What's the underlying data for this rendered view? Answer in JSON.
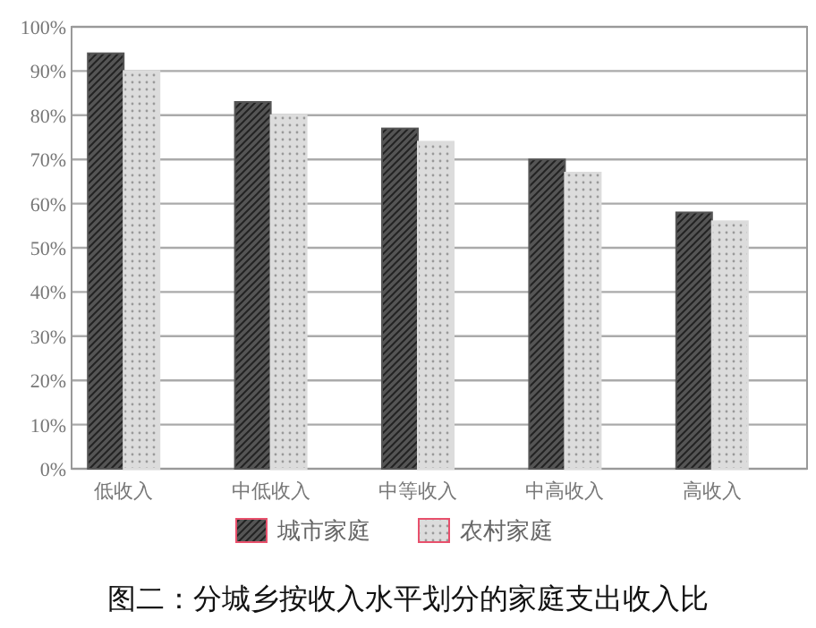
{
  "chart_data": {
    "type": "bar",
    "title": "图二：分城乡按收入水平划分的家庭支出收入比",
    "categories": [
      "低收入",
      "中低收入",
      "中等收入",
      "中高收入",
      "高收入"
    ],
    "series": [
      {
        "name": "城市家庭",
        "color": "#555555",
        "values": [
          94,
          83,
          77,
          70,
          58
        ]
      },
      {
        "name": "农村家庭",
        "color": "#dcdcdc",
        "values": [
          90,
          80,
          74,
          67,
          56
        ]
      }
    ],
    "ylim": [
      0,
      100
    ],
    "yticks": [
      {
        "value": 0,
        "label": "0%"
      },
      {
        "value": 10,
        "label": "10%"
      },
      {
        "value": 20,
        "label": "20%"
      },
      {
        "value": 30,
        "label": "30%"
      },
      {
        "value": 40,
        "label": "40%"
      },
      {
        "value": 50,
        "label": "50%"
      },
      {
        "value": 60,
        "label": "60%"
      },
      {
        "value": 70,
        "label": "70%"
      },
      {
        "value": 80,
        "label": "80%"
      },
      {
        "value": 90,
        "label": "90%"
      },
      {
        "value": 100,
        "label": "100%"
      }
    ],
    "grid": "y",
    "legend": "bottom"
  }
}
